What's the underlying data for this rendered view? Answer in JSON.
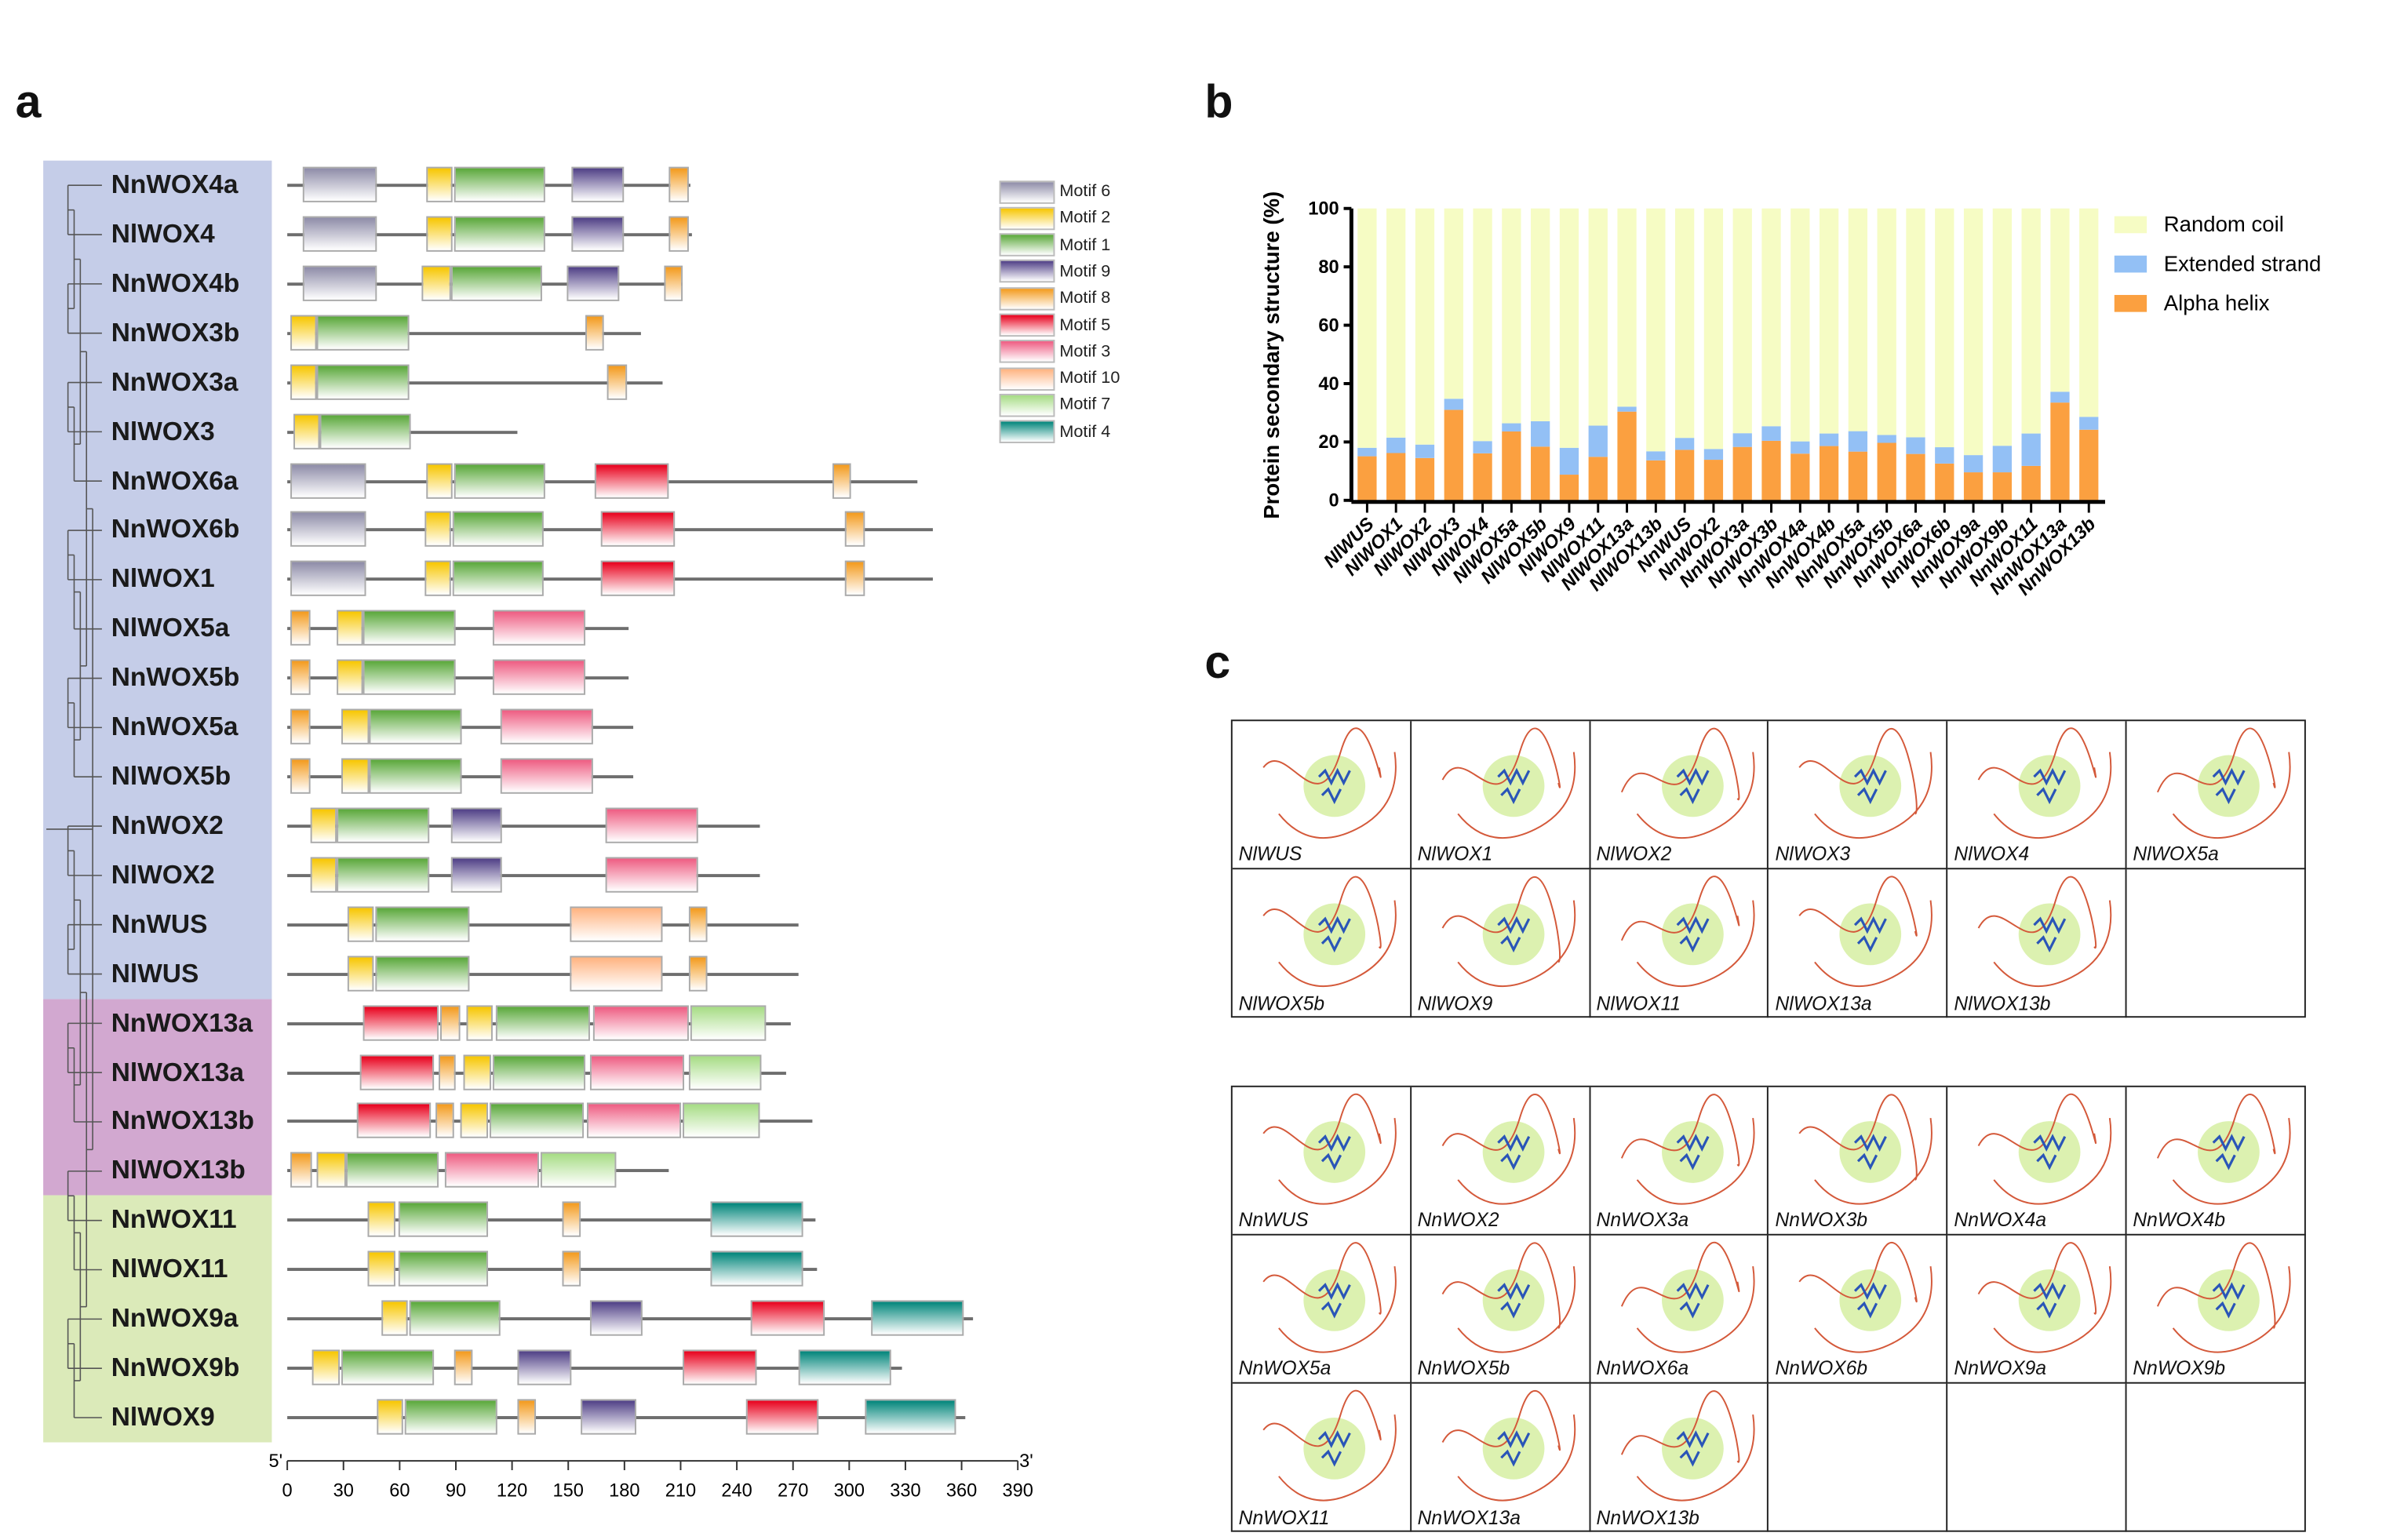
{
  "panels": {
    "a": "a",
    "b": "b",
    "c": "c"
  },
  "panel_a": {
    "motif_colors": {
      "Motif 6": "#8e8ca8",
      "Motif 2": "#f7c600",
      "Motif 1": "#5aa83a",
      "Motif 9": "#4f3f86",
      "Motif 8": "#f39a1c",
      "Motif 5": "#e8001c",
      "Motif 3": "#ee5c82",
      "Motif 10": "#ffb380",
      "Motif 7": "#a6dc84",
      "Motif 4": "#00857a"
    },
    "legend": [
      "Motif 6",
      "Motif 2",
      "Motif 1",
      "Motif 9",
      "Motif 8",
      "Motif 5",
      "Motif 3",
      "Motif 10",
      "Motif 7",
      "Motif 4"
    ],
    "clade_colors": [
      "#c5cde8",
      "#d2a8d0",
      "#dbeab9"
    ],
    "axis": {
      "start_label": "5'",
      "end_label": "3'",
      "ticks": [
        "0",
        "30",
        "60",
        "90",
        "120",
        "150",
        "180",
        "210",
        "240",
        "270",
        "300",
        "330",
        "360",
        "390"
      ],
      "max": 390
    },
    "genes": [
      {
        "name": "NnWOX4a",
        "clade": 0,
        "length": 215,
        "motifs": [
          [
            "Motif 6",
            8,
            48
          ],
          [
            "Motif 2",
            74,
            88
          ],
          [
            "Motif 1",
            89,
            138
          ],
          [
            "Motif 9",
            152,
            180
          ],
          [
            "Motif 8",
            204,
            214
          ]
        ]
      },
      {
        "name": "NlWOX4",
        "clade": 0,
        "length": 216,
        "motifs": [
          [
            "Motif 6",
            8,
            48
          ],
          [
            "Motif 2",
            74,
            88
          ],
          [
            "Motif 1",
            89,
            138
          ],
          [
            "Motif 9",
            152,
            180
          ],
          [
            "Motif 8",
            204,
            214
          ]
        ]
      },
      {
        "name": "NnWOX4b",
        "clade": 0,
        "length": 211,
        "motifs": [
          [
            "Motif 6",
            8,
            48
          ],
          [
            "Motif 2",
            72,
            87
          ],
          [
            "Motif 1",
            87,
            136
          ],
          [
            "Motif 9",
            149,
            177
          ],
          [
            "Motif 8",
            201,
            211
          ]
        ]
      },
      {
        "name": "NnWOX3b",
        "clade": 0,
        "length": 189,
        "motifs": [
          [
            "Motif 2",
            2,
            16
          ],
          [
            "Motif 1",
            16,
            65
          ],
          [
            "Motif 8",
            159,
            169
          ]
        ]
      },
      {
        "name": "NnWOX3a",
        "clade": 0,
        "length": 200,
        "motifs": [
          [
            "Motif 2",
            2,
            16
          ],
          [
            "Motif 1",
            16,
            65
          ],
          [
            "Motif 8",
            171,
            181
          ]
        ]
      },
      {
        "name": "NlWOX3",
        "clade": 0,
        "length": 123,
        "motifs": [
          [
            "Motif 2",
            3,
            17
          ],
          [
            "Motif 1",
            17,
            66
          ]
        ]
      },
      {
        "name": "NnWOX6a",
        "clade": 0,
        "length": 336,
        "motifs": [
          [
            "Motif 6",
            2,
            42
          ],
          [
            "Motif 2",
            74,
            88
          ],
          [
            "Motif 1",
            89,
            138
          ],
          [
            "Motif 5",
            164,
            204
          ],
          [
            "Motif 8",
            291,
            301
          ]
        ]
      },
      {
        "name": "NnWOX6b",
        "clade": 0,
        "length": 345,
        "motifs": [
          [
            "Motif 6",
            2,
            42
          ],
          [
            "Motif 2",
            73,
            87
          ],
          [
            "Motif 1",
            88,
            137
          ],
          [
            "Motif 5",
            167,
            207
          ],
          [
            "Motif 8",
            298,
            308
          ]
        ]
      },
      {
        "name": "NlWOX1",
        "clade": 0,
        "length": 345,
        "motifs": [
          [
            "Motif 6",
            2,
            42
          ],
          [
            "Motif 2",
            73,
            87
          ],
          [
            "Motif 1",
            88,
            137
          ],
          [
            "Motif 5",
            167,
            207
          ],
          [
            "Motif 8",
            298,
            308
          ]
        ]
      },
      {
        "name": "NlWOX5a",
        "clade": 0,
        "length": 182,
        "motifs": [
          [
            "Motif 8",
            2,
            12
          ],
          [
            "Motif 2",
            26,
            40
          ],
          [
            "Motif 1",
            40,
            90
          ],
          [
            "Motif 3",
            110,
            159
          ]
        ]
      },
      {
        "name": "NnWOX5b",
        "clade": 0,
        "length": 182,
        "motifs": [
          [
            "Motif 8",
            2,
            12
          ],
          [
            "Motif 2",
            26,
            40
          ],
          [
            "Motif 1",
            40,
            90
          ],
          [
            "Motif 3",
            110,
            159
          ]
        ]
      },
      {
        "name": "NnWOX5a",
        "clade": 0,
        "length": 185,
        "motifs": [
          [
            "Motif 8",
            2,
            12
          ],
          [
            "Motif 2",
            29,
            44
          ],
          [
            "Motif 1",
            44,
            93
          ],
          [
            "Motif 3",
            114,
            163
          ]
        ]
      },
      {
        "name": "NlWOX5b",
        "clade": 0,
        "length": 185,
        "motifs": [
          [
            "Motif 8",
            2,
            12
          ],
          [
            "Motif 2",
            29,
            44
          ],
          [
            "Motif 1",
            44,
            93
          ],
          [
            "Motif 3",
            114,
            163
          ]
        ]
      },
      {
        "name": "NnWOX2",
        "clade": 0,
        "length": 252,
        "motifs": [
          [
            "Motif 2",
            12,
            26
          ],
          [
            "Motif 1",
            26,
            76
          ],
          [
            "Motif 9",
            87,
            115
          ],
          [
            "Motif 3",
            170,
            219
          ]
        ]
      },
      {
        "name": "NlWOX2",
        "clade": 0,
        "length": 252,
        "motifs": [
          [
            "Motif 2",
            12,
            26
          ],
          [
            "Motif 1",
            26,
            76
          ],
          [
            "Motif 9",
            87,
            115
          ],
          [
            "Motif 3",
            170,
            219
          ]
        ]
      },
      {
        "name": "NnWUS",
        "clade": 0,
        "length": 273,
        "motifs": [
          [
            "Motif 2",
            32,
            46
          ],
          [
            "Motif 1",
            47,
            97
          ],
          [
            "Motif 10",
            151,
            200
          ],
          [
            "Motif 8",
            214,
            224
          ]
        ]
      },
      {
        "name": "NlWUS",
        "clade": 0,
        "length": 273,
        "motifs": [
          [
            "Motif 2",
            32,
            46
          ],
          [
            "Motif 1",
            47,
            97
          ],
          [
            "Motif 10",
            151,
            200
          ],
          [
            "Motif 8",
            214,
            224
          ]
        ]
      },
      {
        "name": "NnWOX13a",
        "clade": 1,
        "length": 269,
        "motifs": [
          [
            "Motif 5",
            40,
            81
          ],
          [
            "Motif 8",
            82,
            92
          ],
          [
            "Motif 2",
            96,
            110
          ],
          [
            "Motif 1",
            111,
            162
          ],
          [
            "Motif 3",
            163,
            214
          ],
          [
            "Motif 7",
            215,
            256
          ]
        ]
      },
      {
        "name": "NlWOX13a",
        "clade": 1,
        "length": 266,
        "motifs": [
          [
            "Motif 5",
            39,
            78
          ],
          [
            "Motif 8",
            81,
            90
          ],
          [
            "Motif 2",
            94,
            109
          ],
          [
            "Motif 1",
            110,
            159
          ],
          [
            "Motif 3",
            162,
            212
          ],
          [
            "Motif 7",
            214,
            253
          ]
        ]
      },
      {
        "name": "NnWOX13b",
        "clade": 1,
        "length": 280,
        "motifs": [
          [
            "Motif 5",
            37,
            77
          ],
          [
            "Motif 8",
            79,
            89
          ],
          [
            "Motif 2",
            92,
            107
          ],
          [
            "Motif 1",
            108,
            158
          ],
          [
            "Motif 3",
            160,
            210
          ],
          [
            "Motif 7",
            211,
            252
          ]
        ]
      },
      {
        "name": "NlWOX13b",
        "clade": 1,
        "length": 204,
        "motifs": [
          [
            "Motif 8",
            2,
            13
          ],
          [
            "Motif 2",
            16,
            31
          ],
          [
            "Motif 1",
            31,
            81
          ],
          [
            "Motif 3",
            84,
            134
          ],
          [
            "Motif 7",
            135,
            176
          ]
        ]
      },
      {
        "name": "NnWOX11",
        "clade": 2,
        "length": 282,
        "motifs": [
          [
            "Motif 2",
            43,
            58
          ],
          [
            "Motif 1",
            59,
            107
          ],
          [
            "Motif 8",
            147,
            157
          ],
          [
            "Motif 4",
            226,
            275
          ]
        ]
      },
      {
        "name": "NlWOX11",
        "clade": 2,
        "length": 283,
        "motifs": [
          [
            "Motif 2",
            43,
            58
          ],
          [
            "Motif 1",
            59,
            107
          ],
          [
            "Motif 8",
            147,
            157
          ],
          [
            "Motif 4",
            226,
            275
          ]
        ]
      },
      {
        "name": "NnWOX9a",
        "clade": 2,
        "length": 366,
        "motifs": [
          [
            "Motif 2",
            50,
            64
          ],
          [
            "Motif 1",
            65,
            114
          ],
          [
            "Motif 9",
            162,
            190
          ],
          [
            "Motif 5",
            247,
            287
          ],
          [
            "Motif 4",
            312,
            361
          ]
        ]
      },
      {
        "name": "NnWOX9b",
        "clade": 2,
        "length": 328,
        "motifs": [
          [
            "Motif 2",
            13,
            28
          ],
          [
            "Motif 1",
            29,
            78
          ],
          [
            "Motif 8",
            89,
            99
          ],
          [
            "Motif 9",
            123,
            152
          ],
          [
            "Motif 5",
            211,
            251
          ],
          [
            "Motif 4",
            273,
            322
          ]
        ]
      },
      {
        "name": "NlWOX9",
        "clade": 2,
        "length": 362,
        "motifs": [
          [
            "Motif 2",
            48,
            62
          ],
          [
            "Motif 1",
            63,
            112
          ],
          [
            "Motif 8",
            123,
            133
          ],
          [
            "Motif 9",
            157,
            186
          ],
          [
            "Motif 5",
            245,
            284
          ],
          [
            "Motif 4",
            308,
            357
          ]
        ]
      }
    ]
  },
  "chart_data": {
    "type": "bar",
    "stacked": true,
    "ylabel": "Protein secondary structure (%)",
    "xlabel": "",
    "ylim": [
      0,
      100
    ],
    "yticks": [
      "0",
      "20",
      "40",
      "60",
      "80",
      "100"
    ],
    "legend_position": "right",
    "categories": [
      "NlWUS",
      "NlWOX1",
      "NlWOX2",
      "NlWOX3",
      "NlWOX4",
      "NlWOX5a",
      "NlWOX5b",
      "NlWOX9",
      "NlWOX11",
      "NlWOX13a",
      "NlWOX13b",
      "NnWUS",
      "NnWOX2",
      "NnWOX3a",
      "NnWOX3b",
      "NnWOX4a",
      "NnWOX4b",
      "NnWOX5a",
      "NnWOX5b",
      "NnWOX6a",
      "NnWOX6b",
      "NnWOX9a",
      "NnWOX9b",
      "NnWOX11",
      "NnWOX13a",
      "NnWOX13b"
    ],
    "series": [
      {
        "name": "Alpha helix",
        "color": "#fba040",
        "values": [
          15.1,
          16.2,
          14.5,
          31.0,
          16.1,
          23.6,
          18.4,
          8.8,
          14.9,
          30.4,
          13.7,
          17.3,
          13.9,
          18.3,
          20.4,
          16.0,
          18.6,
          16.7,
          19.7,
          15.9,
          12.6,
          9.6,
          9.6,
          11.8,
          33.5,
          24.2
        ]
      },
      {
        "name": "Extended strand",
        "color": "#93c0f5",
        "values": [
          2.9,
          5.3,
          4.6,
          3.8,
          4.2,
          2.8,
          8.7,
          9.2,
          10.7,
          1.7,
          3.1,
          4.1,
          3.7,
          4.7,
          5.0,
          4.2,
          4.3,
          7.0,
          2.7,
          5.7,
          5.6,
          5.9,
          9.1,
          11.1,
          3.7,
          4.4
        ]
      },
      {
        "name": "Random coil",
        "color": "#f6fcc4",
        "values": [
          82.0,
          78.5,
          80.9,
          65.2,
          79.7,
          73.6,
          72.9,
          82.0,
          74.4,
          67.9,
          83.2,
          78.6,
          82.4,
          77.0,
          74.6,
          79.8,
          77.1,
          76.3,
          77.6,
          78.4,
          81.8,
          84.5,
          81.3,
          77.1,
          62.8,
          71.4
        ]
      }
    ],
    "legend": [
      "Random coil",
      "Extended strand",
      "Alpha helix"
    ]
  },
  "panel_c": {
    "grid1": [
      "NlWUS",
      "NlWOX1",
      "NlWOX2",
      "NlWOX3",
      "NlWOX4",
      "NlWOX5a",
      "NlWOX5b",
      "NlWOX9",
      "NlWOX11",
      "NlWOX13a",
      "NlWOX13b",
      ""
    ],
    "grid2": [
      "NnWUS",
      "NnWOX2",
      "NnWOX3a",
      "NnWOX3b",
      "NnWOX4a",
      "NnWOX4b",
      "NnWOX5a",
      "NnWOX5b",
      "NnWOX6a",
      "NnWOX6b",
      "NnWOX9a",
      "NnWOX9b",
      "NnWOX11",
      "NnWOX13a",
      "NnWOX13b",
      "",
      "",
      ""
    ]
  }
}
